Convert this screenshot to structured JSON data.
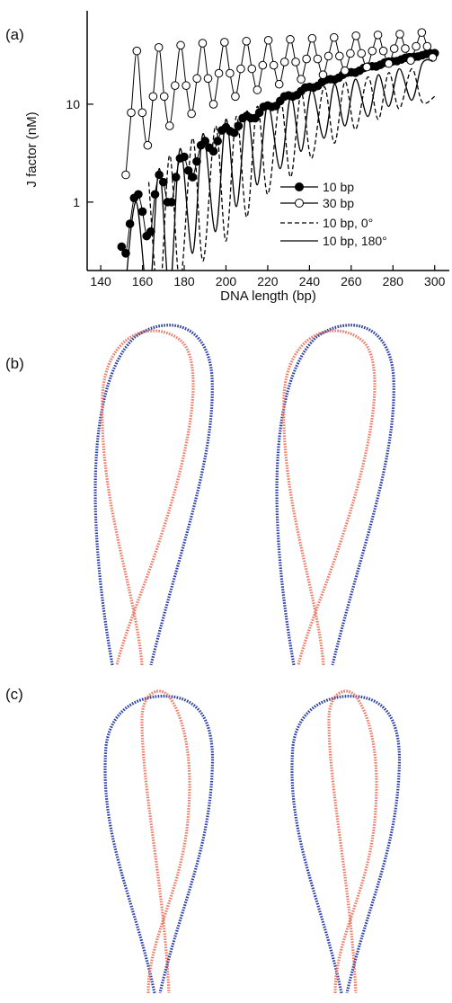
{
  "chart_data": {
    "type": "line",
    "yscale": "log",
    "xlabel": "DNA length (bp)",
    "ylabel": "J factor (nM)",
    "xlim": [
      133.5,
      307
    ],
    "xticks": [
      140,
      160,
      180,
      200,
      220,
      240,
      260,
      280,
      300
    ],
    "ylim": [
      0.2,
      90
    ],
    "yticks": [
      1,
      10
    ],
    "legend": "lower right",
    "series": [
      {
        "name": "10 bp",
        "color": "#000000",
        "marker": "filled",
        "linestyle": "solid",
        "x": [
          150,
          152,
          154,
          156,
          158,
          160,
          162,
          164,
          166,
          168,
          170,
          172,
          174,
          176,
          178,
          180,
          182,
          184,
          186,
          188,
          190,
          192,
          194,
          196,
          198,
          200,
          202,
          204,
          206,
          208,
          210,
          212,
          214,
          216,
          218,
          220,
          222,
          224,
          226,
          228,
          230,
          232,
          234,
          236,
          238,
          240,
          242,
          244,
          246,
          248,
          250,
          252,
          254,
          256,
          258,
          260,
          262,
          264,
          266,
          268,
          270,
          272,
          274,
          276,
          278,
          280,
          282,
          284,
          286,
          288,
          290,
          292,
          294,
          296,
          298,
          300
        ],
        "values": [
          0.35,
          0.3,
          0.6,
          1.1,
          1.2,
          0.8,
          0.45,
          0.5,
          1.2,
          1.9,
          1.6,
          1.0,
          1.0,
          1.8,
          2.8,
          2.9,
          2.1,
          1.8,
          2.6,
          3.8,
          4.2,
          3.6,
          3.3,
          4.2,
          5.4,
          5.8,
          5.3,
          5.1,
          6.0,
          7.2,
          7.6,
          7.2,
          7.2,
          8.2,
          9.4,
          9.7,
          9.4,
          9.6,
          10.8,
          12,
          12.3,
          12,
          12.4,
          13.6,
          14.8,
          15,
          14.8,
          15.4,
          16.8,
          17.8,
          18,
          17.8,
          18.6,
          20,
          21,
          21.2,
          21,
          22,
          23.4,
          24.2,
          24.4,
          24.3,
          25.3,
          26.6,
          27.2,
          27.4,
          27.6,
          28.6,
          29.8,
          30.2,
          30.4,
          30.7,
          31.6,
          32.6,
          33,
          33.2
        ]
      },
      {
        "name": "30 bp",
        "color": "#000000",
        "marker": "open",
        "linestyle": "solid",
        "x": [
          152,
          154.6,
          157.3,
          159.9,
          162.5,
          165.1,
          167.8,
          170.4,
          173,
          175.6,
          178.3,
          180.9,
          183.5,
          186.1,
          188.8,
          191.4,
          194,
          196.6,
          199.3,
          201.9,
          204.5,
          207.1,
          209.8,
          212.4,
          215,
          217.6,
          220.3,
          222.9,
          225.5,
          228.1,
          230.8,
          233.4,
          236,
          238.6,
          241.3,
          243.9,
          246.5,
          249.1,
          251.8,
          254.4,
          257,
          259.6,
          262.3,
          264.9,
          267.5,
          270.1,
          272.8,
          275.4,
          278,
          280.6,
          283.3,
          285.9,
          288.5,
          291.1,
          293.8,
          296.4,
          299
        ],
        "values": [
          1.9,
          8.2,
          35,
          8.2,
          3.8,
          12,
          38,
          12,
          6,
          15.5,
          40,
          15.5,
          8,
          18.3,
          42,
          18.3,
          10,
          20.7,
          43,
          20.7,
          12,
          23,
          44,
          23,
          14,
          25,
          45,
          25,
          16,
          27,
          46,
          27,
          18,
          29,
          47,
          29,
          20,
          31,
          48,
          31,
          22,
          33,
          50,
          33,
          24,
          35,
          51,
          35,
          26,
          37,
          52,
          37,
          28,
          39,
          54,
          39,
          30
        ]
      },
      {
        "name": "10 bp, 0°",
        "color": "#000000",
        "marker": "none",
        "linestyle": "dashed",
        "x": [
          163,
          168,
          173,
          178,
          184,
          189,
          195,
          200,
          205,
          210,
          215,
          220,
          226,
          231,
          236,
          241,
          247,
          252,
          257,
          262,
          268,
          273,
          278,
          283,
          289,
          294,
          300
        ],
        "values": [
          1.6,
          0.1,
          3,
          0.15,
          4.5,
          0.25,
          6,
          0.4,
          7.5,
          0.7,
          9.5,
          1.2,
          11,
          1.8,
          13,
          2.8,
          15,
          4,
          17,
          5.5,
          19,
          7,
          21,
          9,
          23,
          10.5,
          12
        ]
      },
      {
        "name": "10 bp, 180°",
        "color": "#000000",
        "marker": "none",
        "linestyle": "solid",
        "x": [
          152,
          157,
          163,
          168,
          173,
          178,
          184,
          189,
          195,
          200,
          205,
          210,
          215,
          220,
          226,
          231,
          236,
          241,
          247,
          252,
          257,
          262,
          268,
          273,
          278,
          283,
          289,
          294,
          299
        ],
        "values": [
          0.15,
          1.0,
          0.1,
          2.2,
          0.12,
          3.5,
          0.3,
          5,
          0.5,
          7,
          0.9,
          8.5,
          1.5,
          10,
          2.2,
          12,
          3.3,
          14,
          4.5,
          16,
          6,
          18,
          7.5,
          20,
          9.5,
          23,
          11,
          26,
          28
        ]
      }
    ]
  },
  "panels": {
    "a": "(a)",
    "b": "(b)",
    "c": "(c)"
  }
}
